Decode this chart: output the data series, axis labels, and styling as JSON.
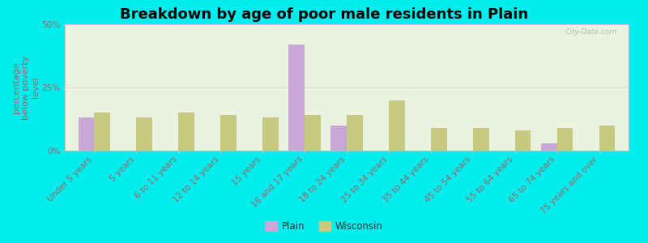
{
  "title": "Breakdown by age of poor male residents in Plain",
  "ylabel": "percentage\nbelow poverty\nlevel",
  "categories": [
    "Under 5 years",
    "5 years",
    "6 to 11 years",
    "12 to 14 years",
    "15 years",
    "16 and 17 years",
    "18 to 24 years",
    "25 to 34 years",
    "35 to 44 years",
    "45 to 54 years",
    "55 to 64 years",
    "65 to 74 years",
    "75 years and over"
  ],
  "plain_values": [
    13.0,
    0,
    0,
    0,
    0,
    42.0,
    10.0,
    0,
    0,
    0,
    0,
    3.0,
    0
  ],
  "wisconsin_values": [
    15.0,
    13.0,
    15.0,
    14.0,
    13.0,
    14.0,
    14.0,
    20.0,
    9.0,
    9.0,
    8.0,
    9.0,
    10.0
  ],
  "plain_color": "#c9a8d8",
  "wisconsin_color": "#c5ca80",
  "bg_color": "#00eeee",
  "plot_bg_color": "#eaf2e0",
  "ylim": [
    0,
    50
  ],
  "yticks": [
    0,
    25,
    50
  ],
  "ytick_labels": [
    "0%",
    "25%",
    "50%"
  ],
  "bar_width": 0.38,
  "title_fontsize": 13,
  "tick_fontsize": 7.5,
  "ylabel_fontsize": 8,
  "legend_plain": "Plain",
  "legend_wisconsin": "Wisconsin",
  "watermark": "City-Data.com",
  "grid_color": "#e8d8d8",
  "tick_color": "#996666",
  "spine_color": "#ccbbbb"
}
